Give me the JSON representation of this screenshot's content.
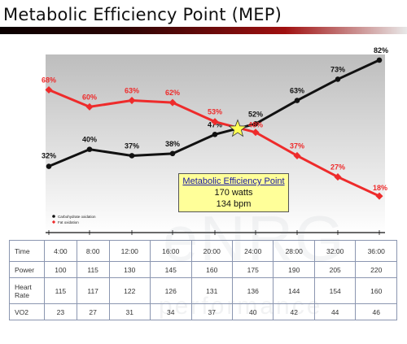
{
  "header": {
    "title": "Metabolic Efficiency Point (MEP)"
  },
  "chart_data": {
    "type": "line",
    "title": "Metabolic Efficiency Point (MEP)",
    "categories": [
      "4:00",
      "8:00",
      "12:00",
      "16:00",
      "20:00",
      "24:00",
      "28:00",
      "32:00",
      "36:00"
    ],
    "series": [
      {
        "name": "Carbohydrate oxidation",
        "color": "#111111",
        "values": [
          32,
          40,
          37,
          38,
          47,
          52,
          63,
          73,
          82
        ],
        "labels": [
          "32%",
          "40%",
          "37%",
          "38%",
          "47%",
          "52%",
          "63%",
          "73%",
          "82%"
        ]
      },
      {
        "name": "Fat oxidation",
        "color": "#ee2b2b",
        "values": [
          68,
          60,
          63,
          62,
          53,
          48,
          37,
          27,
          18
        ],
        "labels": [
          "68%",
          "60%",
          "63%",
          "62%",
          "53%",
          "48%",
          "37%",
          "27%",
          "18%"
        ]
      }
    ],
    "crossover_marker": "star",
    "ylim": [
      10,
      90
    ],
    "grid": false,
    "legend_position": "bottom-left"
  },
  "callout": {
    "title": "Metabolic Efficiency Point",
    "line1": "170 watts",
    "line2": "134 bpm"
  },
  "table": {
    "rows": [
      {
        "label": "Time",
        "values": [
          "4:00",
          "8:00",
          "12:00",
          "16:00",
          "20:00",
          "24:00",
          "28:00",
          "32:00",
          "36:00"
        ]
      },
      {
        "label": "Power",
        "values": [
          "100",
          "115",
          "130",
          "145",
          "160",
          "175",
          "190",
          "205",
          "220"
        ]
      },
      {
        "label": "Heart Rate",
        "values": [
          "115",
          "117",
          "122",
          "126",
          "131",
          "136",
          "144",
          "154",
          "160"
        ]
      },
      {
        "label": "VO2",
        "values": [
          "23",
          "27",
          "31",
          "34",
          "37",
          "40",
          "42",
          "44",
          "46"
        ]
      }
    ]
  },
  "watermark": {
    "text": "eNRG",
    "subtext": "performance"
  }
}
